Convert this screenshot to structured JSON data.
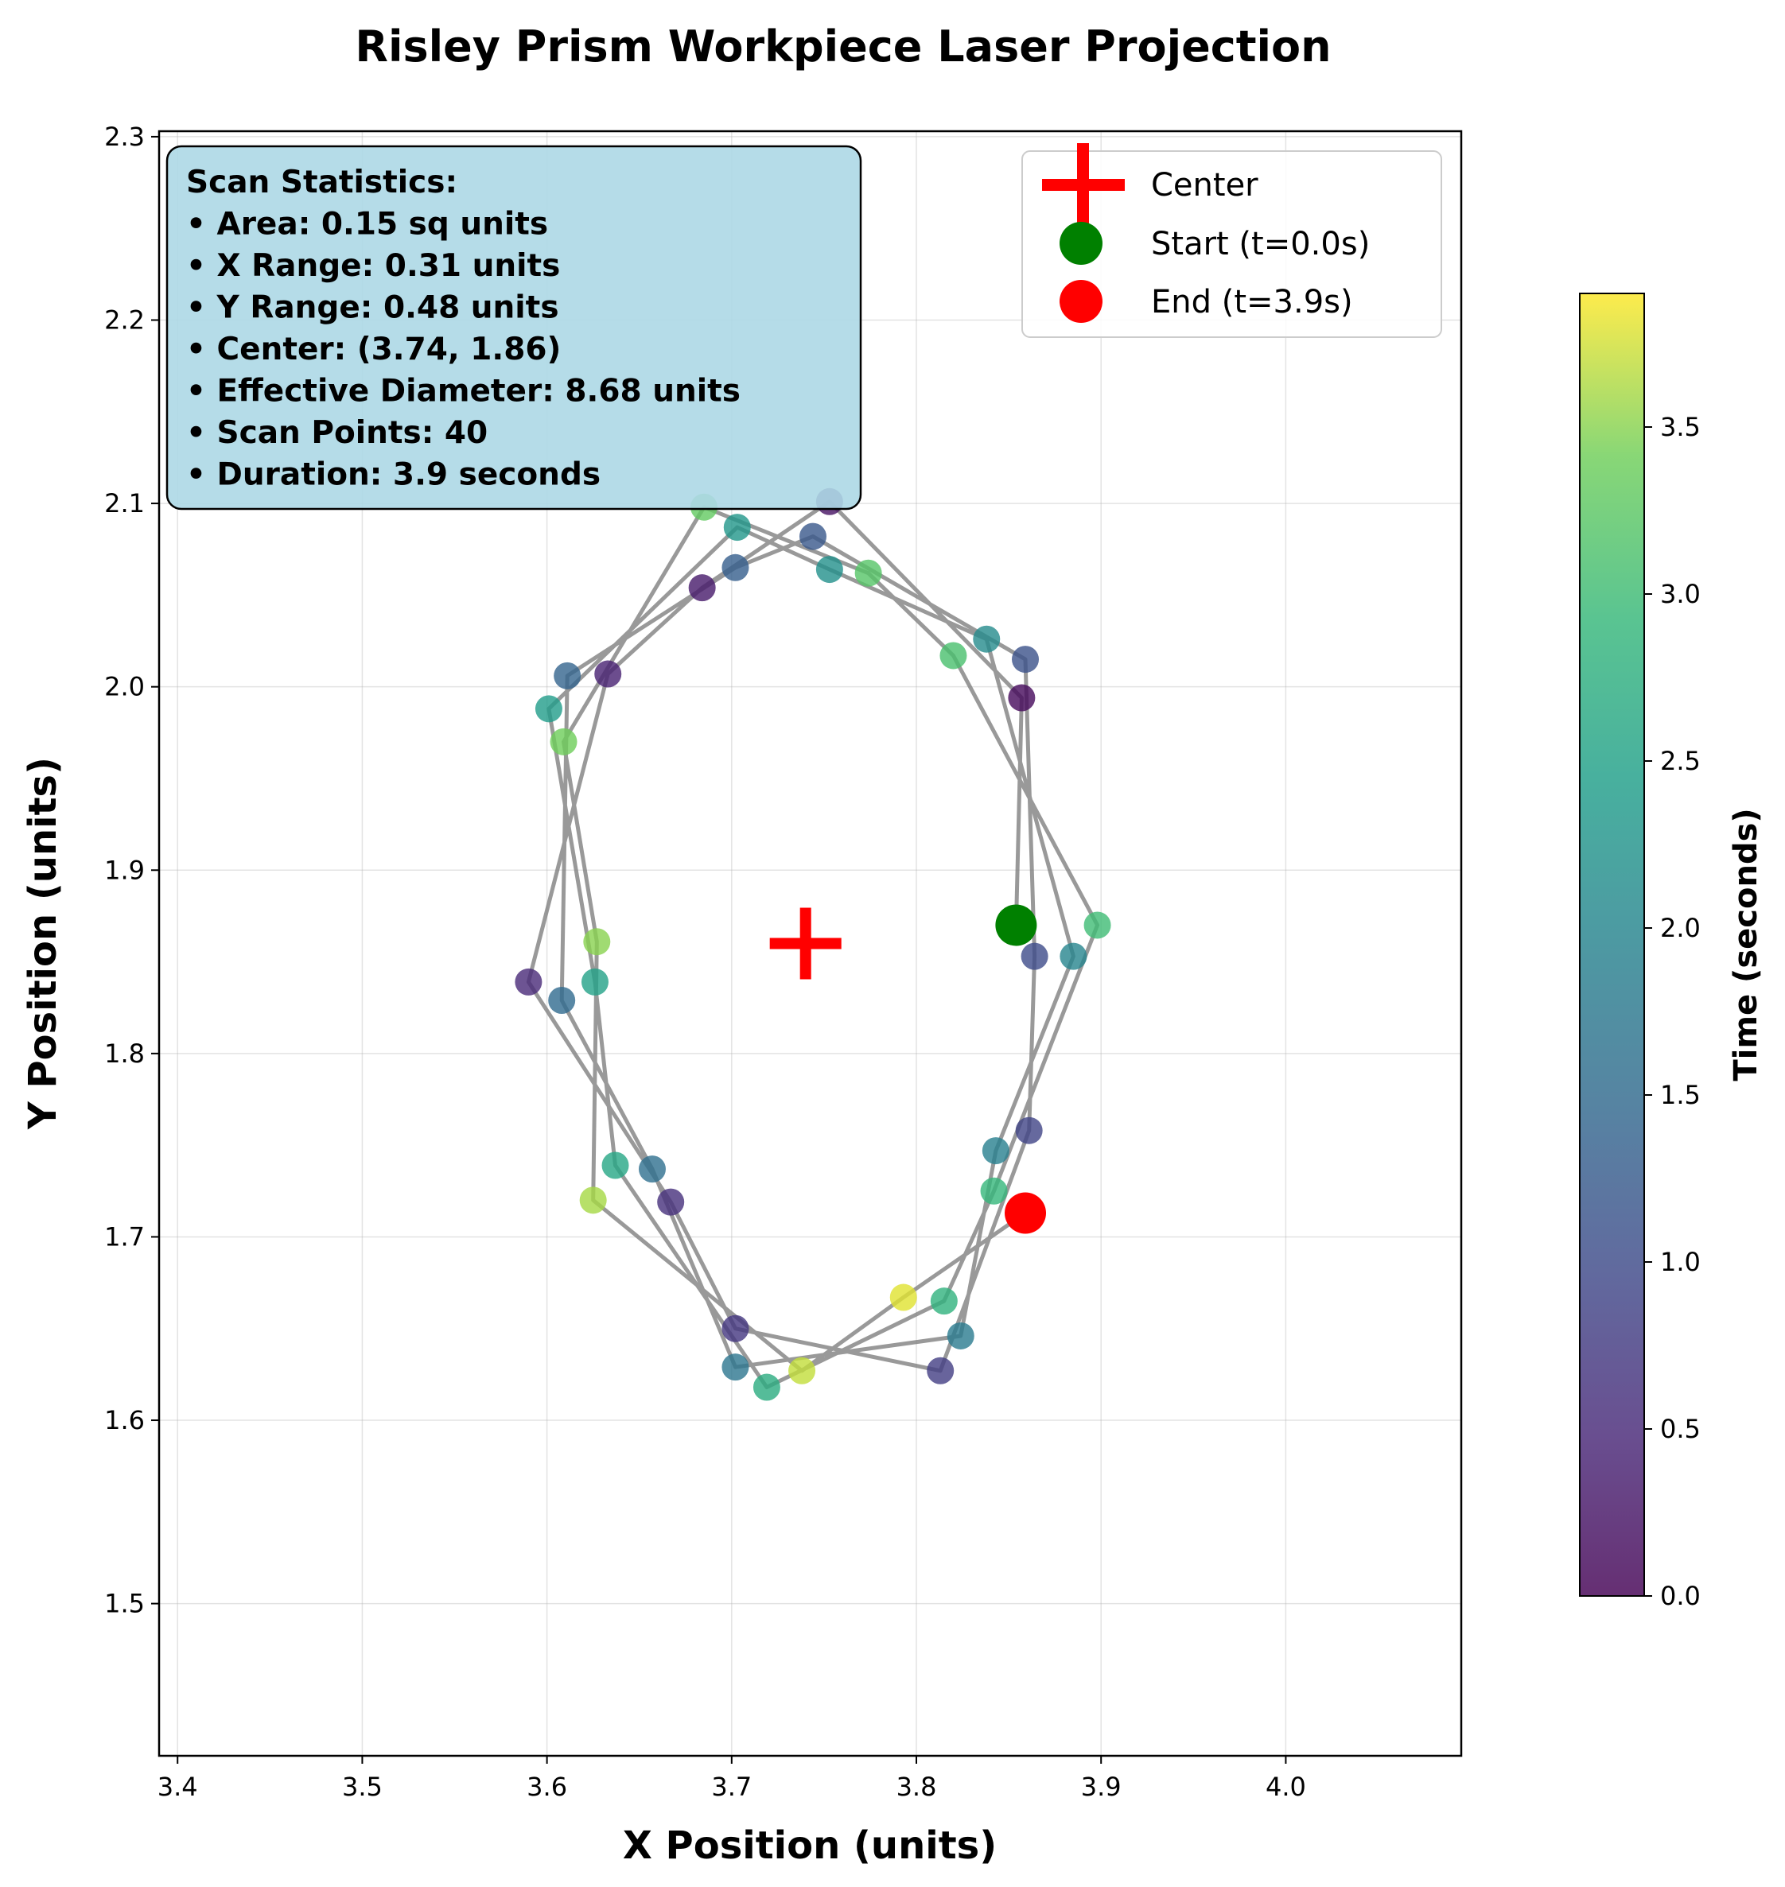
{
  "chart_data": {
    "type": "scatter",
    "title": "Risley Prism Workpiece Laser Projection",
    "xlabel": "X Position (units)",
    "ylabel": "Y Position (units)",
    "xlim": [
      3.39,
      4.095
    ],
    "ylim": [
      1.417,
      2.303
    ],
    "xticks": [
      "3.4",
      "3.5",
      "3.6",
      "3.7",
      "3.8",
      "3.9",
      "4.0"
    ],
    "yticks": [
      "1.5",
      "1.6",
      "1.7",
      "1.8",
      "1.9",
      "2.0",
      "2.1",
      "2.2",
      "2.3"
    ],
    "grid": true,
    "colorbar": {
      "label": "Time (seconds)",
      "colormap": "viridis",
      "range": [
        0.0,
        3.9
      ],
      "ticks": [
        "0.0",
        "0.5",
        "1.0",
        "1.5",
        "2.0",
        "2.5",
        "3.0",
        "3.5"
      ]
    },
    "legend": {
      "placement": "top-right",
      "entries": [
        {
          "label": "Center",
          "marker": "plus",
          "color": "#ff0000"
        },
        {
          "label": "Start (t=0.0s)",
          "marker": "circle",
          "color": "#008000"
        },
        {
          "label": "End (t=3.9s)",
          "marker": "circle",
          "color": "#ff0000"
        }
      ]
    },
    "center": {
      "x": 3.74,
      "y": 1.86
    },
    "start": {
      "x": 3.854,
      "y": 1.87
    },
    "end": {
      "x": 3.859,
      "y": 1.713
    },
    "scan_path": [
      {
        "t": 0.0,
        "x": 3.854,
        "y": 1.87
      },
      {
        "t": 0.1,
        "x": 3.857,
        "y": 1.994
      },
      {
        "t": 0.2,
        "x": 3.753,
        "y": 2.101
      },
      {
        "t": 0.3,
        "x": 3.684,
        "y": 2.054
      },
      {
        "t": 0.4,
        "x": 3.633,
        "y": 2.007
      },
      {
        "t": 0.5,
        "x": 3.59,
        "y": 1.839
      },
      {
        "t": 0.6,
        "x": 3.667,
        "y": 1.719
      },
      {
        "t": 0.7,
        "x": 3.702,
        "y": 1.65
      },
      {
        "t": 0.8,
        "x": 3.813,
        "y": 1.627
      },
      {
        "t": 0.9,
        "x": 3.861,
        "y": 1.758
      },
      {
        "t": 1.0,
        "x": 3.864,
        "y": 1.853
      },
      {
        "t": 1.1,
        "x": 3.859,
        "y": 2.015
      },
      {
        "t": 1.2,
        "x": 3.744,
        "y": 2.082
      },
      {
        "t": 1.3,
        "x": 3.702,
        "y": 2.065
      },
      {
        "t": 1.4,
        "x": 3.611,
        "y": 2.006
      },
      {
        "t": 1.5,
        "x": 3.608,
        "y": 1.829
      },
      {
        "t": 1.6,
        "x": 3.657,
        "y": 1.737
      },
      {
        "t": 1.7,
        "x": 3.702,
        "y": 1.629
      },
      {
        "t": 1.8,
        "x": 3.824,
        "y": 1.646
      },
      {
        "t": 1.9,
        "x": 3.843,
        "y": 1.747
      },
      {
        "t": 2.0,
        "x": 3.885,
        "y": 1.853
      },
      {
        "t": 2.1,
        "x": 3.838,
        "y": 2.026
      },
      {
        "t": 2.2,
        "x": 3.753,
        "y": 2.064
      },
      {
        "t": 2.3,
        "x": 3.703,
        "y": 2.087
      },
      {
        "t": 2.4,
        "x": 3.601,
        "y": 1.988
      },
      {
        "t": 2.5,
        "x": 3.626,
        "y": 1.839
      },
      {
        "t": 2.6,
        "x": 3.637,
        "y": 1.739
      },
      {
        "t": 2.7,
        "x": 3.719,
        "y": 1.618
      },
      {
        "t": 2.8,
        "x": 3.815,
        "y": 1.665
      },
      {
        "t": 2.9,
        "x": 3.842,
        "y": 1.725
      },
      {
        "t": 3.0,
        "x": 3.898,
        "y": 1.87
      },
      {
        "t": 3.1,
        "x": 3.82,
        "y": 2.017
      },
      {
        "t": 3.2,
        "x": 3.774,
        "y": 2.062
      },
      {
        "t": 3.3,
        "x": 3.685,
        "y": 2.098
      },
      {
        "t": 3.4,
        "x": 3.609,
        "y": 1.97
      },
      {
        "t": 3.5,
        "x": 3.627,
        "y": 1.861
      },
      {
        "t": 3.6,
        "x": 3.625,
        "y": 1.72
      },
      {
        "t": 3.7,
        "x": 3.738,
        "y": 1.627
      },
      {
        "t": 3.8,
        "x": 3.793,
        "y": 1.667
      },
      {
        "t": 3.9,
        "x": 3.859,
        "y": 1.713
      }
    ]
  },
  "stats_box": {
    "lines": [
      "Scan Statistics:",
      "• Area: 0.15 sq units",
      "• X Range: 0.31 units",
      "• Y Range: 0.48 units",
      "• Center: (3.74, 1.86)",
      "• Effective Diameter: 8.68 units",
      "• Scan Points: 40",
      "• Duration: 3.9 seconds"
    ]
  }
}
